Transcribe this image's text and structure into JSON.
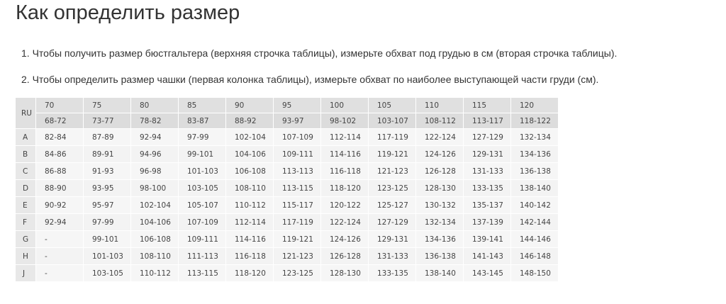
{
  "title": "Как определить размер",
  "instructions": [
    "1. Чтобы получить размер бюстгальтера (верхняя строчка таблицы), измерьте обхват под грудью в см (вторая строчка таблицы).",
    "2. Чтобы определить размер чашки (первая колонка таблицы), измерьте обхват по наиболее выступающей части груди (см)."
  ],
  "table": {
    "corner_label": "RU",
    "sizes": [
      "70",
      "75",
      "80",
      "85",
      "90",
      "95",
      "100",
      "105",
      "110",
      "115",
      "120"
    ],
    "underbust": [
      "68-72",
      "73-77",
      "78-82",
      "83-87",
      "88-92",
      "93-97",
      "98-102",
      "103-107",
      "108-112",
      "113-117",
      "118-122"
    ],
    "rows": [
      {
        "cup": "A",
        "values": [
          "82-84",
          "87-89",
          "92-94",
          "97-99",
          "102-104",
          "107-109",
          "112-114",
          "117-119",
          "122-124",
          "127-129",
          "132-134"
        ]
      },
      {
        "cup": "B",
        "values": [
          "84-86",
          "89-91",
          "94-96",
          "99-101",
          "104-106",
          "109-111",
          "114-116",
          "119-121",
          "124-126",
          "129-131",
          "134-136"
        ]
      },
      {
        "cup": "C",
        "values": [
          "86-88",
          "91-93",
          "96-98",
          "101-103",
          "106-108",
          "113-113",
          "116-118",
          "121-123",
          "126-128",
          "131-133",
          "136-138"
        ]
      },
      {
        "cup": "D",
        "values": [
          "88-90",
          "93-95",
          "98-100",
          "103-105",
          "108-110",
          "113-115",
          "118-120",
          "123-125",
          "128-130",
          "133-135",
          "138-140"
        ]
      },
      {
        "cup": "E",
        "values": [
          "90-92",
          "95-97",
          "102-104",
          "105-107",
          "110-112",
          "115-117",
          "120-122",
          "125-127",
          "130-132",
          "135-137",
          "140-142"
        ]
      },
      {
        "cup": "F",
        "values": [
          "92-94",
          "97-99",
          "104-106",
          "107-109",
          "112-114",
          "117-119",
          "122-124",
          "127-129",
          "132-134",
          "137-139",
          "142-144"
        ]
      },
      {
        "cup": "G",
        "values": [
          "-",
          "99-101",
          "106-108",
          "109-111",
          "114-116",
          "119-121",
          "124-126",
          "129-131",
          "134-136",
          "139-141",
          "144-146"
        ]
      },
      {
        "cup": "H",
        "values": [
          "-",
          "101-103",
          "108-110",
          "111-113",
          "116-118",
          "121-123",
          "126-128",
          "131-133",
          "136-138",
          "141-143",
          "146-148"
        ]
      },
      {
        "cup": "J",
        "values": [
          "-",
          "103-105",
          "110-112",
          "113-115",
          "118-120",
          "123-125",
          "128-130",
          "133-135",
          "138-140",
          "143-145",
          "148-150"
        ]
      }
    ]
  }
}
